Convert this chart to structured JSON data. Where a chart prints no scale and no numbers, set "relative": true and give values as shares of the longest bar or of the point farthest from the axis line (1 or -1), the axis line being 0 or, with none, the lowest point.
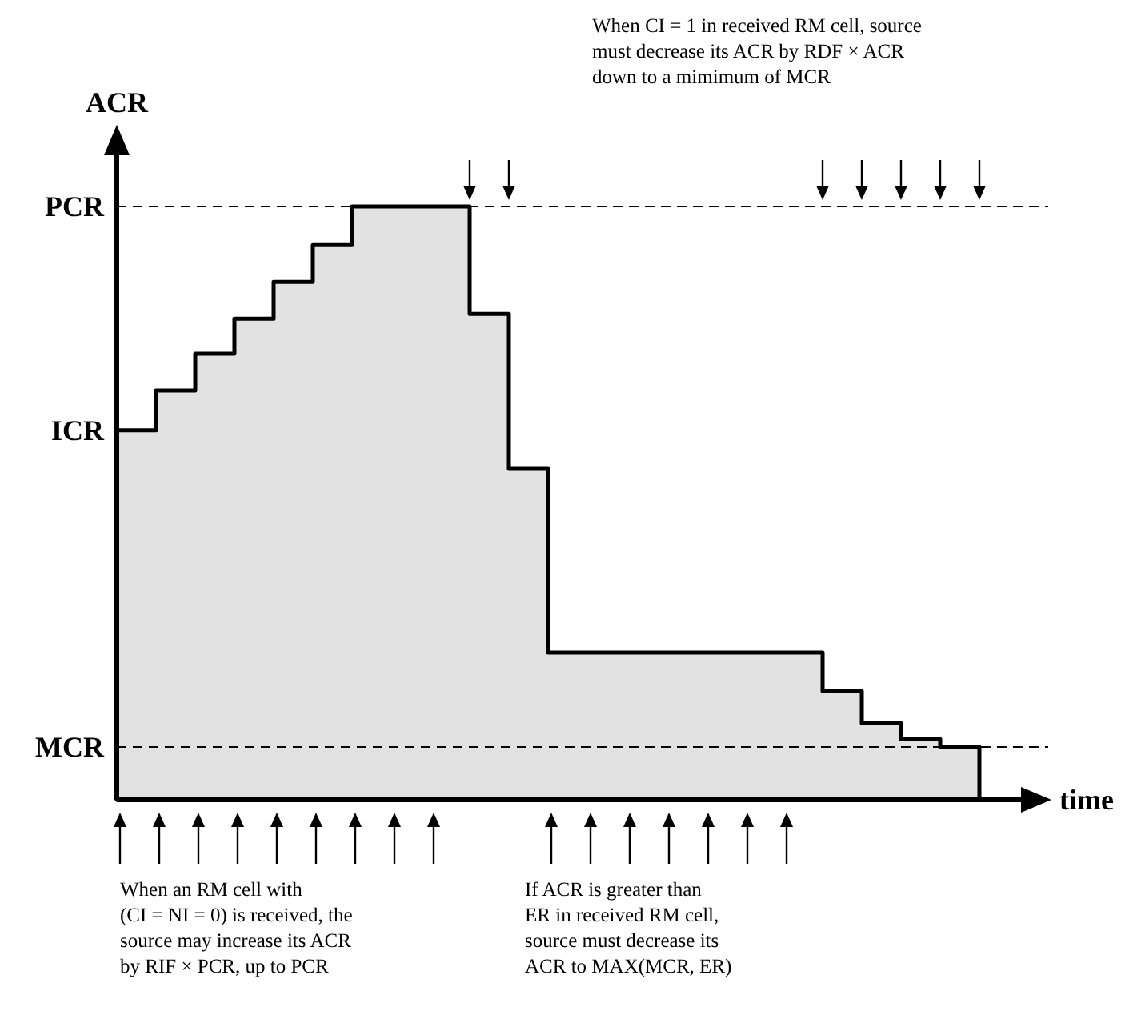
{
  "chart_data": {
    "type": "area",
    "relative": true,
    "ylabel": "ACR",
    "xlabel": "time",
    "categories": [
      null,
      null,
      null,
      null,
      null,
      null,
      null,
      null,
      null,
      null,
      null,
      null,
      null,
      null,
      null,
      null,
      null,
      null,
      null,
      null,
      null,
      null,
      null
    ],
    "series": [
      {
        "color": "#e2e2e2",
        "values": [
          0.623,
          0.69,
          0.752,
          0.811,
          0.873,
          0.935,
          1.0,
          1.0,
          1.0,
          0.819,
          0.558,
          0.248,
          0.248,
          0.248,
          0.248,
          0.248,
          0.248,
          0.248,
          0.183,
          0.129,
          0.102,
          0.089,
          0.089
        ]
      }
    ],
    "ref_lines": [
      {
        "axis": "y",
        "value": 1.0,
        "label": "PCR",
        "line_style": "dashed"
      },
      {
        "axis": "y",
        "value": 0.089,
        "label": "MCR",
        "line_style": "dashed"
      }
    ],
    "annotations": [
      "When CI = 1 in received RM cell, source\nmust decrease its ACR by RDF × ACR\ndown to a mimimum of MCR",
      "When an RM cell with\n(CI = NI = 0) is received, the\nsource may increase its ACR\nby RIF × PCR, up to PCR",
      "If ACR is greater than\nER in received RM cell,\nsource must decrease its\nACR to MAX(MCR, ER)",
      "ICR"
    ]
  }
}
